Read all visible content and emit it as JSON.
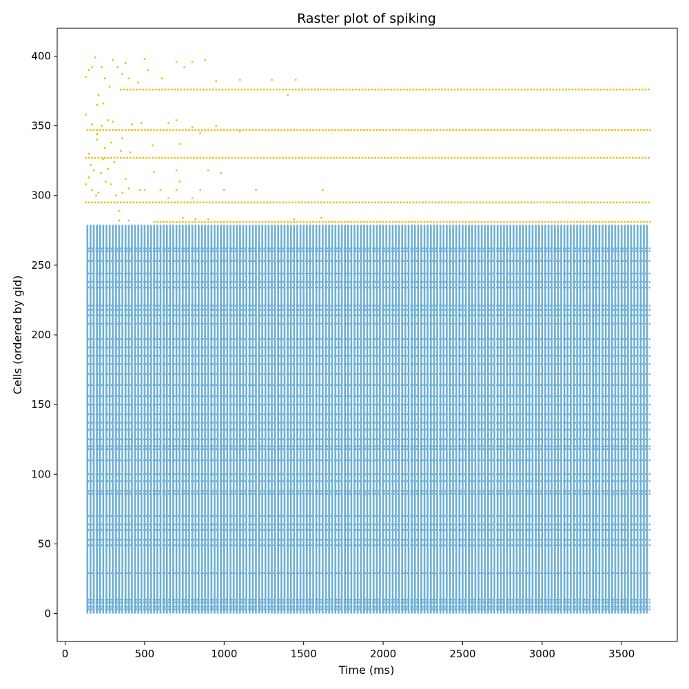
{
  "chart_data": {
    "type": "scatter",
    "title": "Raster plot of spiking",
    "xlabel": "Time (ms)",
    "ylabel": "Cells (ordered by gid)",
    "xlim": [
      -50,
      3850
    ],
    "ylim": [
      -20,
      420
    ],
    "xticks": [
      0,
      500,
      1000,
      1500,
      2000,
      2500,
      3000,
      3500
    ],
    "yticks": [
      0,
      50,
      100,
      150,
      200,
      250,
      300,
      350,
      400
    ],
    "grid": false,
    "legend": "none",
    "series": [
      {
        "color": "#6baed6",
        "marker": "vertical-tick",
        "cells": [
          0,
          279
        ],
        "t_start": 140,
        "t_end": 3670,
        "period_ms": 20,
        "dense_rows": [
          3,
          5,
          8,
          10,
          29,
          49,
          53,
          60,
          64,
          70,
          86,
          88,
          95,
          100,
          110,
          118,
          120,
          125,
          132,
          137,
          143,
          150,
          156,
          164,
          172,
          179,
          185,
          191,
          197,
          208,
          214,
          218,
          221,
          234,
          238,
          244,
          253,
          260,
          262
        ]
      },
      {
        "color": "#e6c21a",
        "marker": "point",
        "cells": [
          280,
          400
        ],
        "t_start": 120,
        "t_end": 3680,
        "tonic_rows": [
          {
            "cell": 281,
            "t_start": 560,
            "t_end": 3680,
            "period_ms": 20
          },
          {
            "cell": 295,
            "t_start": 130,
            "t_end": 3680,
            "period_ms": 20
          },
          {
            "cell": 327,
            "t_start": 130,
            "t_end": 3680,
            "period_ms": 20
          },
          {
            "cell": 347,
            "t_start": 140,
            "t_end": 3680,
            "period_ms": 20
          },
          {
            "cell": 376,
            "t_start": 350,
            "t_end": 3680,
            "period_ms": 20
          }
        ],
        "sparse_points": [
          [
            130,
            308
          ],
          [
            150,
            313
          ],
          [
            160,
            322
          ],
          [
            170,
            304
          ],
          [
            180,
            318
          ],
          [
            195,
            300
          ],
          [
            210,
            302
          ],
          [
            225,
            316
          ],
          [
            240,
            326
          ],
          [
            255,
            310
          ],
          [
            270,
            319
          ],
          [
            290,
            308
          ],
          [
            310,
            324
          ],
          [
            320,
            300
          ],
          [
            340,
            289
          ],
          [
            360,
            302
          ],
          [
            380,
            312
          ],
          [
            400,
            305
          ],
          [
            470,
            304
          ],
          [
            500,
            304
          ],
          [
            600,
            304
          ],
          [
            650,
            298
          ],
          [
            700,
            304
          ],
          [
            720,
            310
          ],
          [
            800,
            298
          ],
          [
            850,
            304
          ],
          [
            1000,
            304
          ],
          [
            1200,
            304
          ],
          [
            1620,
            304
          ],
          [
            150,
            330
          ],
          [
            200,
            340
          ],
          [
            250,
            334
          ],
          [
            290,
            338
          ],
          [
            350,
            332
          ],
          [
            410,
            331
          ],
          [
            560,
            317
          ],
          [
            700,
            318
          ],
          [
            900,
            318
          ],
          [
            980,
            316
          ],
          [
            130,
            358
          ],
          [
            170,
            351
          ],
          [
            200,
            344
          ],
          [
            230,
            350
          ],
          [
            270,
            354
          ],
          [
            300,
            353
          ],
          [
            360,
            341
          ],
          [
            420,
            351
          ],
          [
            480,
            352
          ],
          [
            550,
            336
          ],
          [
            650,
            352
          ],
          [
            700,
            354
          ],
          [
            720,
            337
          ],
          [
            800,
            349
          ],
          [
            850,
            345
          ],
          [
            950,
            350
          ],
          [
            1100,
            346
          ],
          [
            130,
            385
          ],
          [
            150,
            390
          ],
          [
            170,
            392
          ],
          [
            190,
            399
          ],
          [
            210,
            372
          ],
          [
            230,
            392
          ],
          [
            250,
            384
          ],
          [
            280,
            378
          ],
          [
            300,
            397
          ],
          [
            330,
            392
          ],
          [
            360,
            387
          ],
          [
            380,
            395
          ],
          [
            400,
            384
          ],
          [
            460,
            381
          ],
          [
            500,
            398
          ],
          [
            520,
            390
          ],
          [
            610,
            384
          ],
          [
            700,
            396
          ],
          [
            750,
            392
          ],
          [
            800,
            396
          ],
          [
            880,
            397
          ],
          [
            950,
            382
          ],
          [
            1100,
            383
          ],
          [
            1300,
            383
          ],
          [
            1400,
            372
          ],
          [
            1450,
            383
          ],
          [
            200,
            365
          ],
          [
            240,
            366
          ],
          [
            340,
            282
          ],
          [
            400,
            282
          ],
          [
            740,
            284
          ],
          [
            820,
            283
          ],
          [
            900,
            283
          ],
          [
            1440,
            283
          ],
          [
            1610,
            284
          ]
        ]
      }
    ]
  }
}
